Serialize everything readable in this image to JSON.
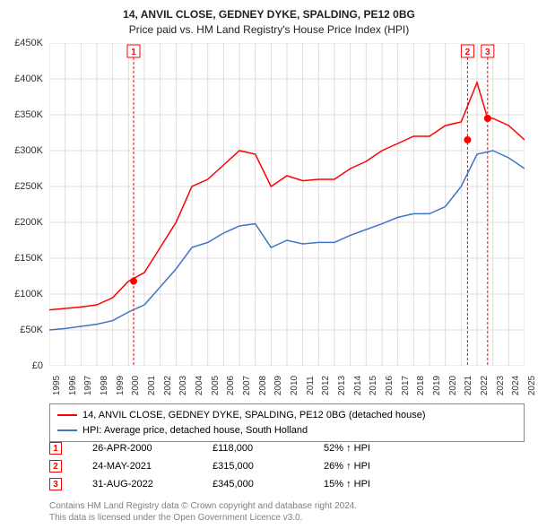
{
  "title": "14, ANVIL CLOSE, GEDNEY DYKE, SPALDING, PE12 0BG",
  "subtitle": "Price paid vs. HM Land Registry's House Price Index (HPI)",
  "chart": {
    "type": "line",
    "background_color": "#ffffff",
    "grid_color": "#dddddd",
    "title_fontsize": 12,
    "label_fontsize": 11,
    "x_years": [
      1995,
      1996,
      1997,
      1998,
      1999,
      2000,
      2001,
      2002,
      2003,
      2004,
      2005,
      2006,
      2007,
      2008,
      2009,
      2010,
      2011,
      2012,
      2013,
      2014,
      2015,
      2016,
      2017,
      2018,
      2019,
      2020,
      2021,
      2022,
      2023,
      2024,
      2025
    ],
    "ylim": [
      0,
      450000
    ],
    "ytick_step": 50000,
    "ytick_labels": [
      "£0",
      "£50K",
      "£100K",
      "£150K",
      "£200K",
      "£250K",
      "£300K",
      "£350K",
      "£400K",
      "£450K"
    ],
    "series": [
      {
        "name": "14, ANVIL CLOSE, GEDNEY DYKE, SPALDING, PE12 0BG (detached house)",
        "color": "#ff0000",
        "line_width": 1.5,
        "x": [
          1995,
          1996,
          1997,
          1998,
          1999,
          2000,
          2001,
          2002,
          2003,
          2004,
          2005,
          2006,
          2007,
          2008,
          2009,
          2010,
          2011,
          2012,
          2013,
          2014,
          2015,
          2016,
          2017,
          2018,
          2019,
          2020,
          2021,
          2022,
          2022.67,
          2023,
          2024,
          2025
        ],
        "y": [
          78000,
          80000,
          82000,
          85000,
          95000,
          118000,
          130000,
          165000,
          200000,
          250000,
          260000,
          280000,
          300000,
          295000,
          250000,
          265000,
          258000,
          260000,
          260000,
          275000,
          285000,
          300000,
          310000,
          320000,
          320000,
          335000,
          340000,
          395000,
          345000,
          345000,
          335000,
          315000
        ]
      },
      {
        "name": "HPI: Average price, detached house, South Holland",
        "color": "#4472c4",
        "line_width": 1.5,
        "x": [
          1995,
          1996,
          1997,
          1998,
          1999,
          2000,
          2001,
          2002,
          2003,
          2004,
          2005,
          2006,
          2007,
          2008,
          2009,
          2010,
          2011,
          2012,
          2013,
          2014,
          2015,
          2016,
          2017,
          2018,
          2019,
          2020,
          2021,
          2022,
          2023,
          2024,
          2025
        ],
        "y": [
          50000,
          52000,
          55000,
          58000,
          63000,
          75000,
          85000,
          110000,
          135000,
          165000,
          172000,
          185000,
          195000,
          198000,
          165000,
          175000,
          170000,
          172000,
          172000,
          182000,
          190000,
          198000,
          207000,
          212000,
          212000,
          222000,
          250000,
          295000,
          300000,
          290000,
          275000
        ]
      }
    ],
    "event_markers": [
      {
        "num": "1",
        "date": "26-APR-2000",
        "x": 2000.32,
        "price_label": "£118,000",
        "price": 118000,
        "pct_label": "52% ↑ HPI",
        "marker_color": "#ff0000"
      },
      {
        "num": "2",
        "date": "24-MAY-2021",
        "x": 2021.4,
        "price_label": "£315,000",
        "price": 315000,
        "pct_label": "26% ↑ HPI",
        "marker_color": "#ff0000"
      },
      {
        "num": "3",
        "date": "31-AUG-2022",
        "x": 2022.67,
        "price_label": "£345,000",
        "price": 345000,
        "pct_label": "15% ↑ HPI",
        "marker_color": "#ff0000"
      }
    ],
    "marker_dot_color": "#ff0000",
    "marker_dot_radius": 4
  },
  "attribution": {
    "line1": "Contains HM Land Registry data © Crown copyright and database right 2024.",
    "line2": "This data is licensed under the Open Government Licence v3.0."
  }
}
